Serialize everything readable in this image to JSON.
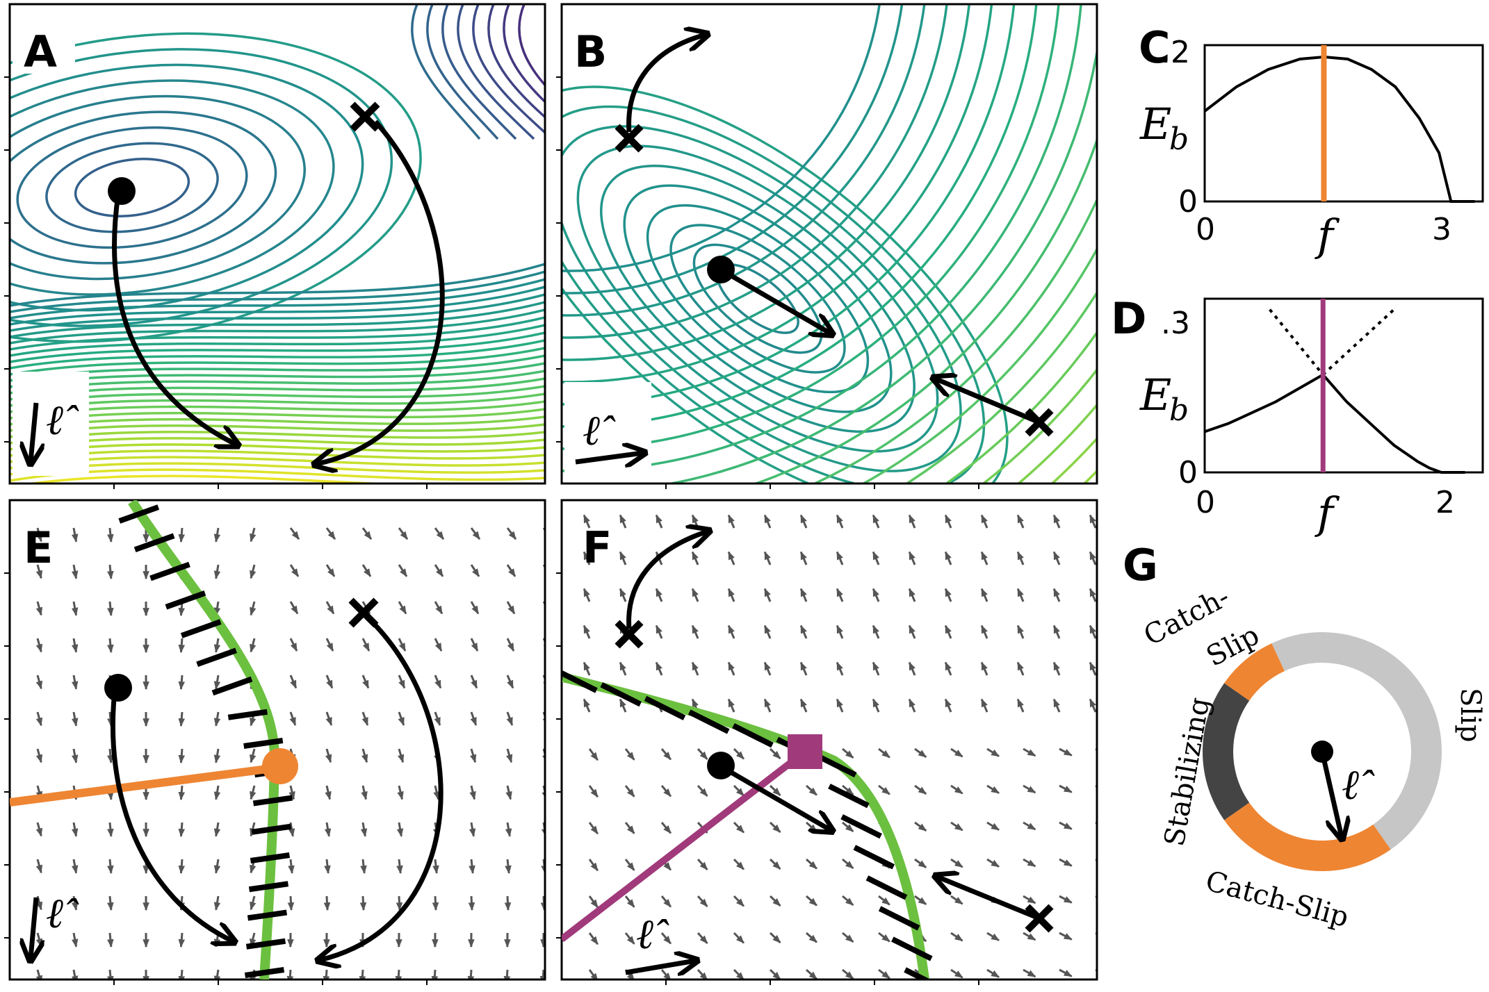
{
  "panels": {
    "A": {
      "letter": "A",
      "ell": "ℓ̂"
    },
    "B": {
      "letter": "B",
      "ell": "ℓ̂"
    },
    "C": {
      "letter": "C",
      "ylabel": "E",
      "ysub": "b",
      "xlabel": "f",
      "xticks": [
        "0",
        "3"
      ],
      "yticks": [
        ".2",
        "0"
      ],
      "curve": {
        "x": [
          0,
          0.4,
          0.8,
          1.2,
          1.5,
          1.8,
          2.1,
          2.4,
          2.7,
          2.95,
          3.1,
          3.2,
          3.4
        ],
        "y": [
          0.13,
          0.165,
          0.19,
          0.205,
          0.208,
          0.205,
          0.19,
          0.165,
          0.12,
          0.07,
          0.0,
          0.0,
          0.0
        ]
      },
      "marker_x": 1.5,
      "marker_color": "#ee8533"
    },
    "D": {
      "letter": "D",
      "ylabel": "E",
      "ysub": "b",
      "xlabel": "f",
      "xticks": [
        "0",
        "2"
      ],
      "yticks": [
        ".3",
        "0"
      ],
      "curve": {
        "x": [
          0,
          0.2,
          0.4,
          0.6,
          0.8,
          1.0,
          1.2,
          1.4,
          1.6,
          1.8,
          1.9,
          2.0,
          2.2
        ],
        "y": [
          0.075,
          0.09,
          0.11,
          0.13,
          0.155,
          0.18,
          0.13,
          0.09,
          0.05,
          0.02,
          0.008,
          0.0,
          0.0
        ]
      },
      "dotted_left": {
        "x": [
          0.55,
          1.0
        ],
        "y": [
          0.3,
          0.18
        ]
      },
      "dotted_right": {
        "x": [
          1.0,
          1.6
        ],
        "y": [
          0.18,
          0.3
        ]
      },
      "marker_x": 1.0,
      "marker_color": "#a03a7b"
    },
    "E": {
      "letter": "E",
      "ell": "ℓ̂"
    },
    "F": {
      "letter": "F",
      "ell": "ℓ̂"
    },
    "G": {
      "letter": "G",
      "ell": "ℓ̂",
      "labels": {
        "catch_slip_top": "Catch-",
        "catch_slip_top2": "Slip",
        "slip": "Slip",
        "stabilizing": "Stabilizing",
        "catch_slip_bottom": "Catch-Slip"
      }
    }
  },
  "colors": {
    "orange": "#ee8533",
    "purple": "#a03a7b",
    "green": "#6cc040",
    "dark_gray": "#444444",
    "light_gray": "#c6c6c6",
    "arrow_gray": "#555555"
  }
}
